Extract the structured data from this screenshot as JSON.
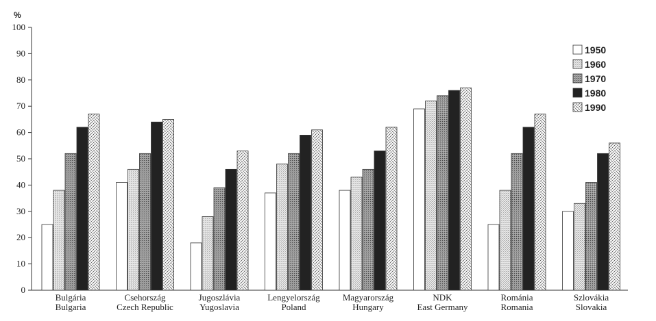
{
  "chart_data": {
    "type": "bar",
    "ylabel": "%",
    "ylim": [
      0,
      100
    ],
    "yticks": [
      0,
      10,
      20,
      30,
      40,
      50,
      60,
      70,
      80,
      90,
      100
    ],
    "categories": [
      {
        "line1": "Bulgária",
        "line2": "Bulgaria"
      },
      {
        "line1": "Csehország",
        "line2": "Czech Republic"
      },
      {
        "line1": "Jugoszlávia",
        "line2": "Yugoslavia"
      },
      {
        "line1": "Lengyelország",
        "line2": "Poland"
      },
      {
        "line1": "Magyarország",
        "line2": "Hungary"
      },
      {
        "line1": "NDK",
        "line2": "East Germany"
      },
      {
        "line1": "Románia",
        "line2": "Romania"
      },
      {
        "line1": "Szlovákia",
        "line2": "Slovakia"
      }
    ],
    "series": [
      {
        "name": "1950",
        "values": [
          25,
          41,
          18,
          37,
          38,
          69,
          25,
          30
        ]
      },
      {
        "name": "1960",
        "values": [
          38,
          46,
          28,
          48,
          43,
          72,
          38,
          33
        ]
      },
      {
        "name": "1970",
        "values": [
          52,
          52,
          39,
          52,
          46,
          74,
          52,
          41
        ]
      },
      {
        "name": "1980",
        "values": [
          62,
          64,
          46,
          59,
          53,
          76,
          62,
          52
        ]
      },
      {
        "name": "1990",
        "values": [
          67,
          65,
          53,
          61,
          62,
          77,
          67,
          56
        ]
      }
    ],
    "legend": {
      "position": "top-right"
    },
    "grid": false
  }
}
